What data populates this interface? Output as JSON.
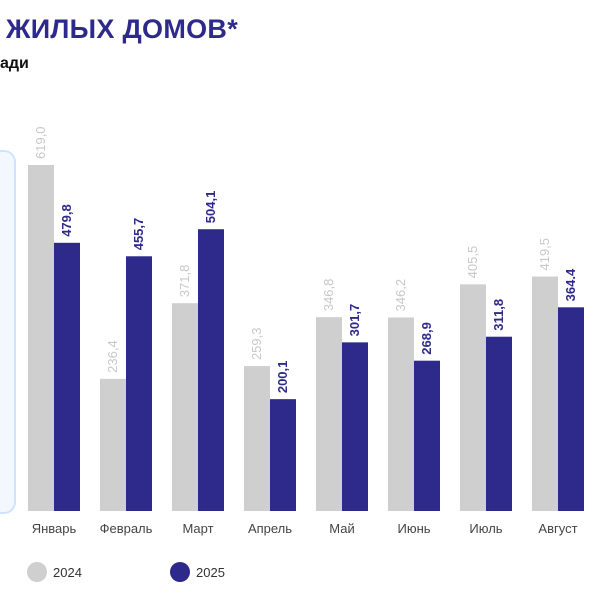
{
  "header": {
    "title": "ЖИЛЫХ ДОМОВ*",
    "subtitle": "ади"
  },
  "colors": {
    "series_2024": "#cfcfcf",
    "series_2025": "#2e2a8c",
    "label_2024": "#c8c8c8",
    "label_2025": "#2e2a8c",
    "title": "#2e2a8c",
    "axis_labels": "#444444"
  },
  "chart_data": {
    "type": "bar",
    "categories": [
      "Январь",
      "Февраль",
      "Март",
      "Апрель",
      "Май",
      "Июнь",
      "Июль",
      "Август"
    ],
    "series": [
      {
        "name": "2024",
        "values": [
          619.0,
          236.4,
          371.8,
          259.3,
          346.8,
          346.2,
          405.5,
          419.5
        ],
        "labels": [
          "619,0",
          "236,4",
          "371,8",
          "259,3",
          "346,8",
          "346,2",
          "405,5",
          "419,5"
        ]
      },
      {
        "name": "2025",
        "values": [
          479.8,
          455.7,
          504.1,
          200.1,
          301.7,
          268.9,
          311.8,
          364.4
        ],
        "labels": [
          "479,8",
          "455,7",
          "504,1",
          "200,1",
          "301,7",
          "268,9",
          "311,8",
          "364.4"
        ]
      }
    ],
    "title": "ЖИЛЫХ ДОМОВ*",
    "xlabel": "",
    "ylabel": "",
    "ylim": [
      0,
      619
    ],
    "grid": false,
    "legend": "bottom-left"
  },
  "legend": {
    "label_2024": "2024",
    "label_2025": "2025"
  }
}
